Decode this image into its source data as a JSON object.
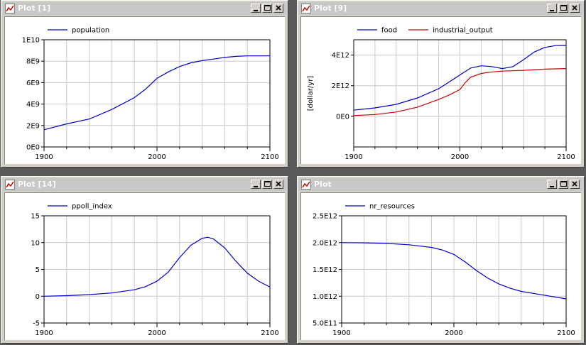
{
  "windows": [
    {
      "id": "w1",
      "title": "Plot [1]",
      "chart_data": {
        "type": "line",
        "title": "",
        "xlabel": "",
        "ylabel": "",
        "xlim": [
          1900,
          2100
        ],
        "ylim": [
          0,
          10000000000
        ],
        "x_ticks": [
          "1900",
          "2000",
          "2100"
        ],
        "y_ticks": [
          "0E0",
          "2E9",
          "4E9",
          "6E9",
          "8E9",
          "1E10"
        ],
        "grid": true,
        "legend": "top-left",
        "series": [
          {
            "name": "population",
            "color": "#0000cc",
            "x": [
              1900,
              1920,
              1940,
              1960,
              1980,
              1990,
              2000,
              2010,
              2020,
              2030,
              2040,
              2050,
              2060,
              2070,
              2080,
              2100
            ],
            "y": [
              1600000000,
              2150000000,
              2600000000,
              3500000000,
              4600000000,
              5400000000,
              6400000000,
              7000000000,
              7500000000,
              7850000000,
              8050000000,
              8200000000,
              8350000000,
              8450000000,
              8500000000,
              8500000000
            ]
          }
        ]
      }
    },
    {
      "id": "w2",
      "title": "Plot [9]",
      "chart_data": {
        "type": "line",
        "title": "",
        "xlabel": "",
        "ylabel": "[dollar/yr]",
        "xlim": [
          1900,
          2100
        ],
        "ylim": [
          -2000000000000,
          5000000000000
        ],
        "x_ticks": [
          "1900",
          "2000",
          "2100"
        ],
        "y_ticks": [
          "0E0",
          "2E12",
          "4E12"
        ],
        "grid": true,
        "legend": "top-left",
        "series": [
          {
            "name": "food",
            "color": "#0000cc",
            "x": [
              1900,
              1920,
              1940,
              1960,
              1980,
              1990,
              2000,
              2010,
              2020,
              2030,
              2040,
              2050,
              2060,
              2070,
              2080,
              2090,
              2100
            ],
            "y": [
              400000000000,
              550000000000,
              780000000000,
              1200000000000,
              1800000000000,
              2250000000000,
              2700000000000,
              3150000000000,
              3300000000000,
              3250000000000,
              3120000000000,
              3250000000000,
              3700000000000,
              4200000000000,
              4500000000000,
              4620000000000,
              4630000000000
            ]
          },
          {
            "name": "industrial_output",
            "color": "#cc0000",
            "x": [
              1900,
              1920,
              1940,
              1960,
              1980,
              1990,
              2000,
              2005,
              2010,
              2020,
              2030,
              2040,
              2060,
              2080,
              2100
            ],
            "y": [
              50000000000,
              120000000000,
              280000000000,
              600000000000,
              1100000000000,
              1400000000000,
              1750000000000,
              2200000000000,
              2550000000000,
              2800000000000,
              2900000000000,
              2950000000000,
              3000000000000,
              3080000000000,
              3120000000000
            ]
          }
        ]
      }
    },
    {
      "id": "w3",
      "title": "Plot [14]",
      "chart_data": {
        "type": "line",
        "title": "",
        "xlabel": "",
        "ylabel": "",
        "xlim": [
          1900,
          2100
        ],
        "ylim": [
          -5,
          15
        ],
        "x_ticks": [
          "1900",
          "2000",
          "2100"
        ],
        "y_ticks": [
          "-5",
          "0",
          "5",
          "10",
          "15"
        ],
        "grid": true,
        "legend": "top-left",
        "series": [
          {
            "name": "ppoll_index",
            "color": "#0000cc",
            "x": [
              1900,
              1920,
              1940,
              1960,
              1980,
              1990,
              2000,
              2010,
              2020,
              2030,
              2040,
              2045,
              2050,
              2060,
              2070,
              2080,
              2090,
              2100
            ],
            "y": [
              0,
              0.1,
              0.3,
              0.6,
              1.2,
              1.8,
              2.8,
              4.5,
              7.2,
              9.5,
              10.8,
              11.0,
              10.7,
              9.0,
              6.5,
              4.3,
              2.8,
              1.7
            ]
          }
        ]
      }
    },
    {
      "id": "w4",
      "title": "Plot",
      "chart_data": {
        "type": "line",
        "title": "",
        "xlabel": "",
        "ylabel": "",
        "xlim": [
          1900,
          2100
        ],
        "ylim": [
          500000000000,
          2500000000000
        ],
        "x_ticks": [
          "1900",
          "2000",
          "2100"
        ],
        "y_ticks": [
          "5.0E11",
          "1.0E12",
          "1.5E12",
          "2.0E12",
          "2.5E12"
        ],
        "grid": true,
        "legend": "top-left",
        "series": [
          {
            "name": "nr_resources",
            "color": "#0000cc",
            "x": [
              1900,
              1920,
              1940,
              1960,
              1980,
              1990,
              2000,
              2010,
              2020,
              2030,
              2040,
              2050,
              2060,
              2080,
              2100
            ],
            "y": [
              2000000000000,
              1995000000000,
              1985000000000,
              1960000000000,
              1910000000000,
              1860000000000,
              1780000000000,
              1640000000000,
              1480000000000,
              1340000000000,
              1230000000000,
              1150000000000,
              1090000000000,
              1020000000000,
              950000000000
            ]
          }
        ]
      }
    }
  ]
}
